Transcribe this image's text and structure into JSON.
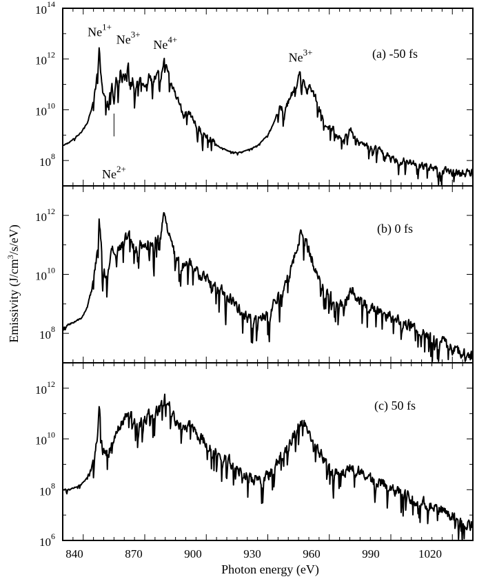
{
  "figure": {
    "ylabel_base": "Emissivity (J/cm",
    "ylabel_sup": "3",
    "ylabel_tail": "/s/eV)",
    "xlabel": "Photon energy (eV)"
  },
  "chart_data": [
    {
      "type": "line",
      "panel_label": "(a) -50 fs",
      "xlim": [
        830,
        1030
      ],
      "ylim_log10": [
        7,
        14
      ],
      "y_scale": "log",
      "yticks": [
        {
          "base": "10",
          "exp": "8",
          "value": 8
        },
        {
          "base": "10",
          "exp": "10",
          "value": 10
        },
        {
          "base": "10",
          "exp": "12",
          "value": 12
        },
        {
          "base": "10",
          "exp": "14",
          "value": 14
        }
      ],
      "annotations": [
        {
          "base": "Ne",
          "sup": "1+",
          "x": 848,
          "y_log10": 12.9
        },
        {
          "base": "Ne",
          "sup": "3+",
          "x": 862,
          "y_log10": 12.6
        },
        {
          "base": "Ne",
          "sup": "4+",
          "x": 880,
          "y_log10": 12.4
        },
        {
          "base": "Ne",
          "sup": "3+",
          "x": 946,
          "y_log10": 11.9
        },
        {
          "base": "Ne",
          "sup": "2+",
          "x": 855,
          "y_log10": 7.3
        }
      ],
      "series": [
        {
          "x": [
            830,
            833,
            836,
            839,
            842,
            844,
            846,
            847,
            847.8,
            848.5,
            849.5,
            851,
            852.5,
            854,
            855,
            856,
            857,
            858,
            859,
            860,
            861,
            862,
            863,
            864,
            865,
            866,
            868,
            870,
            872,
            874,
            876,
            878,
            879.5,
            881,
            883,
            885,
            887,
            889,
            891,
            893,
            896,
            900,
            905,
            910,
            915,
            920,
            925,
            930,
            933,
            936,
            938,
            940,
            942,
            944,
            945.5,
            947,
            949,
            951,
            953,
            955,
            957,
            959,
            962,
            965,
            968,
            970,
            972,
            975,
            978,
            981,
            984,
            987,
            990,
            995,
            1000,
            1005,
            1010,
            1015,
            1020,
            1025,
            1030
          ],
          "y_log10": [
            8.6,
            8.7,
            8.9,
            9.1,
            9.5,
            10.0,
            10.8,
            11.5,
            12.6,
            11.6,
            10.7,
            10.3,
            10.5,
            11.0,
            10.2,
            11.3,
            10.8,
            11.6,
            11.2,
            11.8,
            11.3,
            11.9,
            11.0,
            11.5,
            10.7,
            11.1,
            11.2,
            10.9,
            11.4,
            11.1,
            11.5,
            11.2,
            12.1,
            11.5,
            11.0,
            10.6,
            10.2,
            9.8,
            9.9,
            9.6,
            9.3,
            9.0,
            8.6,
            8.4,
            8.3,
            8.4,
            8.6,
            9.0,
            9.5,
            10.2,
            9.8,
            10.3,
            10.7,
            11.0,
            11.6,
            11.3,
            10.8,
            10.9,
            10.5,
            10.1,
            9.6,
            9.4,
            9.2,
            8.9,
            9.0,
            9.3,
            8.9,
            8.7,
            8.6,
            8.5,
            8.4,
            8.3,
            8.1,
            8.0,
            7.9,
            7.8,
            7.7,
            7.6,
            7.55,
            7.5,
            7.5
          ],
          "noise": 0.45
        }
      ]
    },
    {
      "type": "line",
      "panel_label": "(b) 0 fs",
      "xlim": [
        830,
        1030
      ],
      "ylim_log10": [
        7,
        13
      ],
      "y_scale": "log",
      "yticks": [
        {
          "base": "10",
          "exp": "8",
          "value": 8
        },
        {
          "base": "10",
          "exp": "10",
          "value": 10
        },
        {
          "base": "10",
          "exp": "12",
          "value": 12
        }
      ],
      "series": [
        {
          "x": [
            830,
            833,
            836,
            839,
            842,
            844,
            846,
            847,
            847.8,
            848.5,
            849.5,
            851,
            852.5,
            854,
            856,
            858,
            860,
            862,
            864,
            866,
            868,
            870,
            872,
            874,
            876,
            878,
            879.5,
            881,
            883,
            885,
            888,
            891,
            894,
            897,
            900,
            905,
            910,
            915,
            920,
            925,
            930,
            935,
            938,
            941,
            943,
            945,
            946.5,
            948,
            950,
            953,
            956,
            959,
            962,
            965,
            968,
            971,
            974,
            977,
            980,
            985,
            990,
            995,
            1000,
            1005,
            1010,
            1015,
            1020,
            1025,
            1030
          ],
          "y_log10": [
            8.2,
            8.3,
            8.4,
            8.5,
            8.9,
            9.5,
            10.3,
            11.0,
            12.1,
            11.1,
            10.2,
            9.9,
            10.3,
            10.8,
            10.6,
            11.0,
            11.1,
            11.4,
            11.0,
            10.8,
            11.0,
            10.9,
            11.2,
            11.0,
            11.3,
            11.4,
            12.0,
            11.4,
            11.0,
            10.6,
            10.3,
            10.5,
            10.1,
            10.0,
            9.8,
            9.6,
            9.3,
            8.9,
            8.5,
            8.4,
            8.7,
            9.2,
            9.6,
            10.1,
            10.6,
            11.1,
            11.5,
            11.2,
            10.8,
            10.2,
            9.7,
            9.4,
            9.2,
            9.0,
            9.1,
            9.5,
            9.2,
            9.0,
            8.9,
            8.7,
            8.5,
            8.4,
            8.2,
            8.0,
            7.9,
            7.7,
            7.5,
            7.3,
            7.2
          ],
          "noise": 0.6
        }
      ]
    },
    {
      "type": "line",
      "panel_label": "(c) 50 fs",
      "xlim": [
        830,
        1030
      ],
      "ylim_log10": [
        6,
        13
      ],
      "y_scale": "log",
      "yticks": [
        {
          "base": "10",
          "exp": "6",
          "value": 6
        },
        {
          "base": "10",
          "exp": "8",
          "value": 8
        },
        {
          "base": "10",
          "exp": "10",
          "value": 10
        },
        {
          "base": "10",
          "exp": "12",
          "value": 12
        }
      ],
      "series": [
        {
          "x": [
            830,
            833,
            836,
            839,
            842,
            844,
            846,
            847,
            847.8,
            848.5,
            849.5,
            851,
            853,
            855,
            857,
            859,
            861,
            863,
            865,
            867,
            869,
            871,
            873,
            875,
            877,
            879,
            880,
            882,
            884,
            886,
            889,
            892,
            895,
            898,
            902,
            906,
            910,
            914,
            918,
            922,
            926,
            930,
            934,
            938,
            941,
            944,
            946,
            948,
            950,
            953,
            956,
            959,
            962,
            965,
            968,
            971,
            974,
            977,
            980,
            985,
            990,
            995,
            1000,
            1005,
            1010,
            1015,
            1020,
            1025,
            1030
          ],
          "y_log10": [
            8.0,
            8.0,
            8.1,
            8.2,
            8.5,
            8.9,
            9.6,
            10.3,
            11.3,
            10.3,
            9.6,
            9.4,
            9.6,
            10.0,
            10.3,
            10.6,
            10.9,
            11.0,
            10.6,
            10.4,
            10.7,
            10.8,
            11.0,
            10.9,
            11.2,
            11.3,
            11.8,
            11.3,
            10.9,
            10.6,
            10.4,
            10.6,
            10.2,
            10.0,
            9.6,
            9.4,
            9.2,
            8.9,
            8.7,
            8.4,
            8.4,
            8.6,
            9.0,
            9.5,
            9.9,
            10.4,
            10.8,
            10.6,
            10.2,
            9.8,
            9.4,
            9.0,
            8.8,
            8.6,
            8.7,
            8.9,
            8.7,
            8.6,
            8.4,
            8.3,
            8.1,
            7.9,
            7.7,
            7.5,
            7.4,
            7.2,
            7.0,
            6.8,
            6.6
          ],
          "noise": 0.7
        }
      ]
    }
  ]
}
